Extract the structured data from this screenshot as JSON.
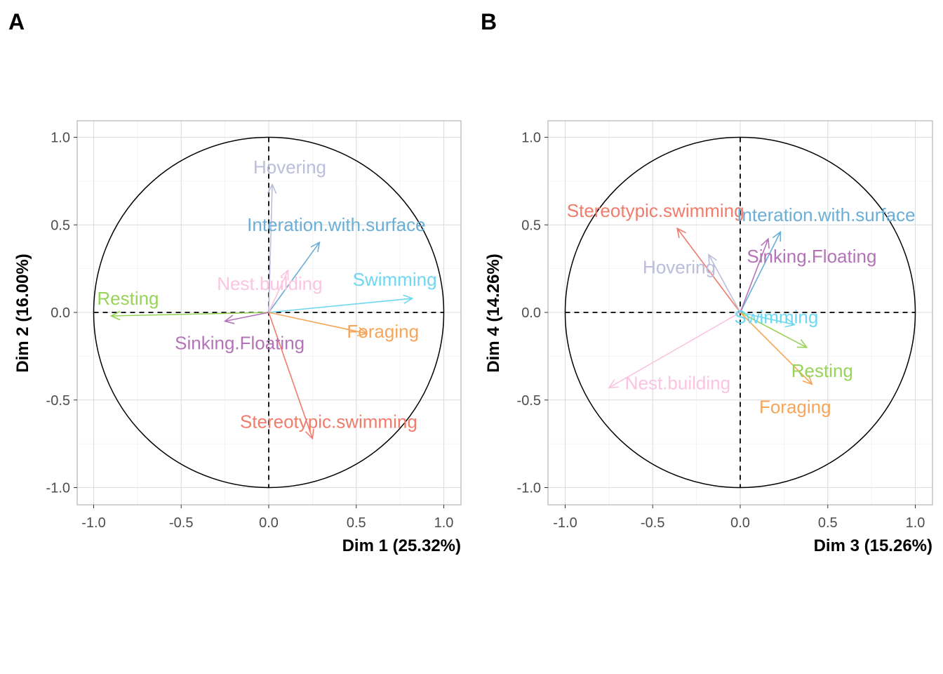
{
  "chart_data": [
    {
      "type": "scatter",
      "subtype": "pca-correlation-circle",
      "panel_label": "A",
      "xlabel": "Dim 1 (25.32%)",
      "ylabel": "Dim 2 (16.00%)",
      "xlim": [
        -1.0,
        1.0
      ],
      "ylim": [
        -1.0,
        1.0
      ],
      "xticks": [
        "-1.0",
        "-0.5",
        "0.0",
        "0.5",
        "1.0"
      ],
      "yticks": [
        "1.0",
        "0.5",
        "0.0",
        "-0.5",
        "-1.0"
      ],
      "grid": true,
      "series": [
        {
          "name": "Hovering",
          "x": 0.02,
          "y": 0.73,
          "color": "#bcbddc"
        },
        {
          "name": "Interation.with.surface",
          "x": 0.29,
          "y": 0.4,
          "color": "#6baed6"
        },
        {
          "name": "Nest.building",
          "x": 0.11,
          "y": 0.24,
          "color": "#fbc4e0"
        },
        {
          "name": "Swimming",
          "x": 0.82,
          "y": 0.08,
          "color": "#6fd8f0"
        },
        {
          "name": "Resting",
          "x": -0.9,
          "y": -0.02,
          "color": "#98d35a"
        },
        {
          "name": "Foraging",
          "x": 0.56,
          "y": -0.12,
          "color": "#f6a65a"
        },
        {
          "name": "Sinking.Floating",
          "x": -0.25,
          "y": -0.05,
          "color": "#b473b8"
        },
        {
          "name": "Stereotypic.swimming",
          "x": 0.25,
          "y": -0.72,
          "color": "#f07c6c"
        }
      ]
    },
    {
      "type": "scatter",
      "subtype": "pca-correlation-circle",
      "panel_label": "B",
      "xlabel": "Dim 3 (15.26%)",
      "ylabel": "Dim 4 (14.26%)",
      "xlim": [
        -1.0,
        1.0
      ],
      "ylim": [
        -1.0,
        1.0
      ],
      "xticks": [
        "-1.0",
        "-0.5",
        "0.0",
        "0.5",
        "1.0"
      ],
      "yticks": [
        "1.0",
        "0.5",
        "0.0",
        "-0.5",
        "-1.0"
      ],
      "grid": true,
      "series": [
        {
          "name": "Stereotypic.swimming",
          "x": -0.36,
          "y": 0.48,
          "color": "#f07c6c"
        },
        {
          "name": "Interation.with.surface",
          "x": 0.23,
          "y": 0.46,
          "color": "#6baed6"
        },
        {
          "name": "Sinking.Floating",
          "x": 0.16,
          "y": 0.42,
          "color": "#b473b8"
        },
        {
          "name": "Hovering",
          "x": -0.18,
          "y": 0.33,
          "color": "#bcbddc"
        },
        {
          "name": "Swimming",
          "x": 0.31,
          "y": -0.07,
          "color": "#6fd8f0"
        },
        {
          "name": "Resting",
          "x": 0.38,
          "y": -0.2,
          "color": "#98d35a"
        },
        {
          "name": "Foraging",
          "x": 0.41,
          "y": -0.41,
          "color": "#f6a65a"
        },
        {
          "name": "Nest.building",
          "x": -0.75,
          "y": -0.43,
          "color": "#fbc4e0"
        }
      ]
    }
  ]
}
